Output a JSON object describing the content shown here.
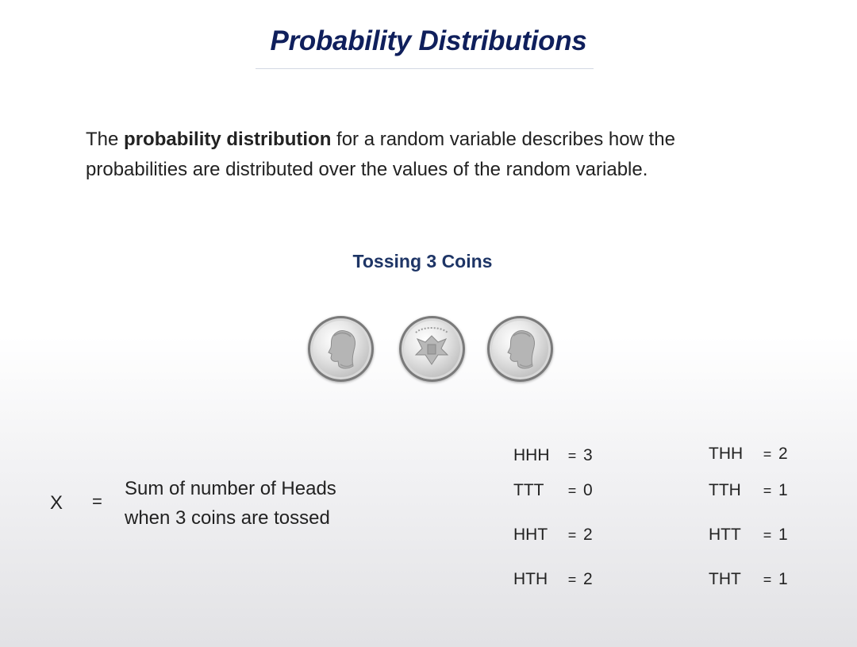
{
  "slide": {
    "title": "Probability Distributions",
    "definition": {
      "prefix": "The ",
      "term": "probability distribution",
      "line1_rest": " for a random variable describes how the",
      "line2": "probabilities are distributed over the values of the random variable."
    },
    "subtitle": "Tossing 3 Coins",
    "coins": [
      "coin-heads-icon",
      "coin-tails-icon",
      "coin-heads-icon"
    ],
    "variable": {
      "symbol": "X",
      "equals": "=",
      "desc_line1": "Sum of number of Heads",
      "desc_line2": "when 3 coins are tossed"
    },
    "outcomes": [
      {
        "seq": "HHH",
        "eq": "=",
        "val": "3"
      },
      {
        "seq": "TTT",
        "eq": "=",
        "val": "0"
      },
      {
        "seq": "HHT",
        "eq": "=",
        "val": "2"
      },
      {
        "seq": "HTH",
        "eq": "=",
        "val": "2"
      },
      {
        "seq": "THH",
        "eq": "=",
        "val": "2"
      },
      {
        "seq": "TTH",
        "eq": "=",
        "val": "1"
      },
      {
        "seq": "HTT",
        "eq": "=",
        "val": "1"
      },
      {
        "seq": "THT",
        "eq": "=",
        "val": "1"
      }
    ]
  }
}
